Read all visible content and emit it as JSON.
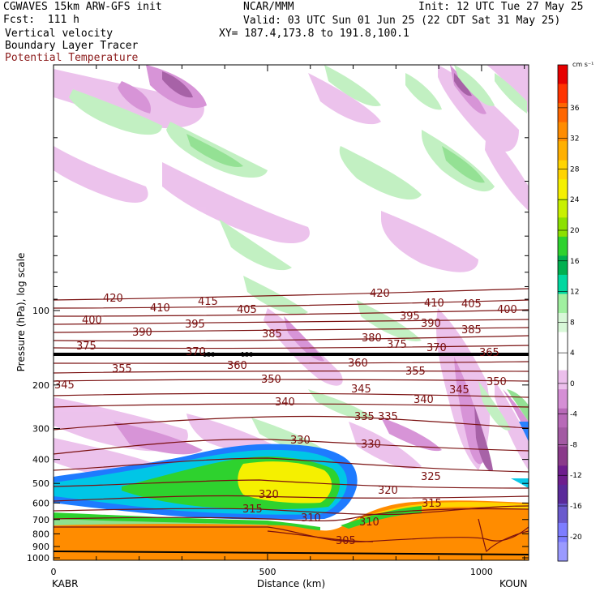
{
  "header": {
    "model": "CGWAVES 15km ARW-GFS init",
    "forecast": "Fcst:  111 h",
    "field1": "Vertical velocity",
    "field2": "Boundary Layer Tracer",
    "field3": "Potential Temperature",
    "center": "NCAR/MMM",
    "init": "Init: 12 UTC Tue 27 May 25",
    "valid": "Valid: 03 UTC Sun 01 Jun 25 (22 CDT Sat 31 May 25)",
    "xy": "XY= 187.4,173.8 to 191.8,100.1"
  },
  "colors": {
    "theta": "#7a1010",
    "sink_light": "#ecbfec",
    "sink_med": "#d58fd5",
    "sink_dark": "#a35aa3",
    "rise_light": "#bff0bf",
    "rise_med": "#8fe08f",
    "tracer_blue": "#1e7bff",
    "tracer_cyan": "#00c6e6",
    "tracer_green": "#2ed22e",
    "tracer_yellow": "#f5f000",
    "terrain": "#ff8c00"
  },
  "chart_data": {
    "type": "heatmap",
    "title": "Vertical velocity / Boundary Layer Tracer / Potential Temperature",
    "xlabel": "Distance (km)",
    "ylabel": "Pressure (hPa), log scale",
    "xlim": [
      0,
      1110
    ],
    "x_ticks": [
      0,
      500,
      1000
    ],
    "y_ticks": [
      100,
      200,
      300,
      400,
      500,
      600,
      700,
      800,
      900,
      1000
    ],
    "y_scale": "log",
    "endpoints": {
      "left": "KABR",
      "right": "KOUN"
    },
    "colorbar": {
      "unit": "cm s⁻¹",
      "labels": [
        36,
        32,
        28,
        24,
        20,
        16,
        12,
        8,
        4,
        0,
        -4,
        -8,
        -12,
        -16,
        -20
      ],
      "colors": [
        "#e60000",
        "#ff3300",
        "#ff6600",
        "#ff8c00",
        "#ffb000",
        "#ffd400",
        "#f5f000",
        "#c8f000",
        "#8ce000",
        "#2ed22e",
        "#00b050",
        "#00d8a0",
        "#a0f0a0",
        "#d8f8d8",
        "#ffffff",
        "#ffffff",
        "#ecbfec",
        "#d58fd5",
        "#b86ab8",
        "#a35aa3",
        "#8a3a8a",
        "#6e1e8e",
        "#5a2a9a",
        "#6a5acd",
        "#7d7dff",
        "#9a9aff"
      ]
    },
    "theta_labels": [
      "420",
      "410",
      "415",
      "405",
      "400",
      "390",
      "395",
      "385",
      "375",
      "370",
      "380",
      "365",
      "360",
      "355",
      "350",
      "345",
      "340",
      "335",
      "330",
      "325",
      "320",
      "315",
      "310",
      "305"
    ],
    "tropopause_marks": [
      "150",
      "150"
    ]
  }
}
